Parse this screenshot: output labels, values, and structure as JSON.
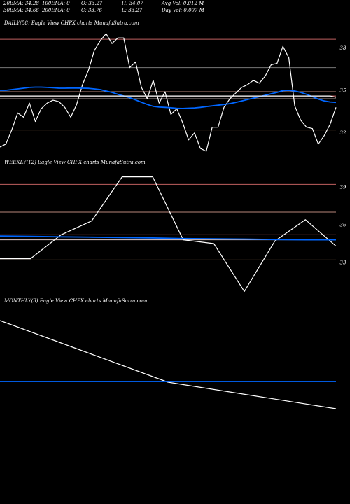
{
  "header": {
    "row1": [
      "20EMA: 34.28",
      "100EMA: 0",
      "O: 33.27",
      "H: 34.07",
      "Avg Vol: 0.012  M"
    ],
    "row2": [
      "30EMA: 34.66",
      "200EMA: 0",
      "C: 33.76",
      "L: 33.27",
      "Day Vol: 0.007  M"
    ]
  },
  "chart_data": [
    {
      "type": "line",
      "title": "DAILY(58) Eagle  View  CHPX  charts MunafaSutra.com",
      "ylim": [
        30.5,
        39.4
      ],
      "price_levels": [
        38.6,
        34.9,
        34.6,
        34.4,
        32.2,
        36.6
      ],
      "y_ticks": [
        38,
        35,
        32
      ],
      "x": [
        0,
        1,
        2,
        3,
        4,
        5,
        6,
        7,
        8,
        9,
        10,
        11,
        12,
        13,
        14,
        15,
        16,
        17,
        18,
        19,
        20,
        21,
        22,
        23,
        24,
        25,
        26,
        27,
        28,
        29,
        30,
        31,
        32,
        33,
        34,
        35,
        36,
        37,
        38,
        39,
        40,
        41,
        42,
        43,
        44,
        45,
        46,
        47,
        48,
        49,
        50,
        51,
        52,
        53,
        54,
        55,
        56,
        57
      ],
      "series": [
        {
          "color": "#ffffff",
          "values": [
            31.0,
            31.2,
            32.2,
            33.4,
            33.1,
            34.1,
            32.8,
            33.7,
            34.1,
            34.3,
            34.2,
            33.8,
            33.1,
            34.0,
            35.4,
            36.4,
            37.8,
            38.5,
            39.0,
            38.3,
            38.7,
            38.7,
            36.6,
            37.0,
            35.2,
            34.4,
            35.7,
            34.1,
            34.9,
            33.3,
            33.7,
            32.7,
            31.5,
            32.0,
            30.9,
            30.7,
            32.4,
            32.4,
            33.8,
            34.4,
            34.8,
            35.2,
            35.4,
            35.7,
            35.5,
            36.0,
            36.8,
            36.9,
            38.1,
            37.3,
            33.9,
            32.9,
            32.4,
            32.3,
            31.2,
            31.8,
            32.6,
            33.8
          ]
        },
        {
          "color": "#0066ff",
          "values": [
            35.0,
            35.0,
            35.05,
            35.1,
            35.15,
            35.2,
            35.22,
            35.22,
            35.2,
            35.18,
            35.15,
            35.15,
            35.16,
            35.16,
            35.15,
            35.14,
            35.1,
            35.05,
            34.95,
            34.85,
            34.72,
            34.6,
            34.48,
            34.32,
            34.16,
            34.0,
            33.87,
            33.82,
            33.8,
            33.77,
            33.73,
            33.72,
            33.74,
            33.76,
            33.8,
            33.85,
            33.9,
            33.95,
            34.0,
            34.06,
            34.15,
            34.25,
            34.35,
            34.45,
            34.55,
            34.65,
            34.75,
            34.85,
            34.98,
            35.0,
            34.95,
            34.85,
            34.72,
            34.55,
            34.38,
            34.25,
            34.18,
            34.15
          ]
        },
        {
          "color": "#ffffff",
          "values": [
            34.6,
            34.6,
            34.6,
            34.6,
            34.6,
            34.6,
            34.6,
            34.6,
            34.6,
            34.6,
            34.6,
            34.6,
            34.6,
            34.6,
            34.6,
            34.6,
            34.6,
            34.6,
            34.6,
            34.6,
            34.6,
            34.6,
            34.6,
            34.6,
            34.6,
            34.6,
            34.6,
            34.6,
            34.6,
            34.6,
            34.6,
            34.6,
            34.6,
            34.6,
            34.6,
            34.6,
            34.6,
            34.6,
            34.6,
            34.6,
            34.6,
            34.6,
            34.6,
            34.6,
            34.6,
            34.6,
            34.6,
            34.6,
            34.6,
            34.6,
            34.6,
            34.6,
            34.6,
            34.6,
            34.6,
            34.6,
            34.6,
            34.5
          ]
        }
      ]
    },
    {
      "type": "line",
      "title": "WEEKLY(12) Eagle  View  CHPX  charts MunafaSutra.com",
      "ylim": [
        30.5,
        40.5
      ],
      "price_levels": [
        39.2,
        37.0,
        35.2,
        34.8,
        33.2
      ],
      "y_ticks": [
        39,
        36,
        33
      ],
      "x": [
        0,
        1,
        2,
        3,
        4,
        5,
        6,
        7,
        8,
        9,
        10,
        11
      ],
      "series": [
        {
          "color": "#ffffff",
          "values": [
            33.3,
            33.3,
            35.2,
            36.3,
            39.8,
            39.8,
            34.8,
            34.5,
            30.7,
            34.7,
            36.4,
            34.3
          ]
        },
        {
          "color": "#0066ff",
          "values": [
            35.1,
            35.07,
            35.04,
            35.01,
            34.98,
            34.95,
            34.9,
            34.88,
            34.86,
            34.82,
            34.8,
            34.8
          ]
        }
      ]
    },
    {
      "type": "line",
      "title": "MONTHLY(3) Eagle  View  CHPX  charts MunafaSutra.com",
      "ylim": [
        31,
        40
      ],
      "x": [
        0,
        1,
        2
      ],
      "series": [
        {
          "color": "#ffffff",
          "values": [
            39.1,
            34.7,
            32.8
          ]
        },
        {
          "color": "#0066ff",
          "values": [
            34.75,
            34.75,
            34.75
          ]
        }
      ]
    }
  ]
}
